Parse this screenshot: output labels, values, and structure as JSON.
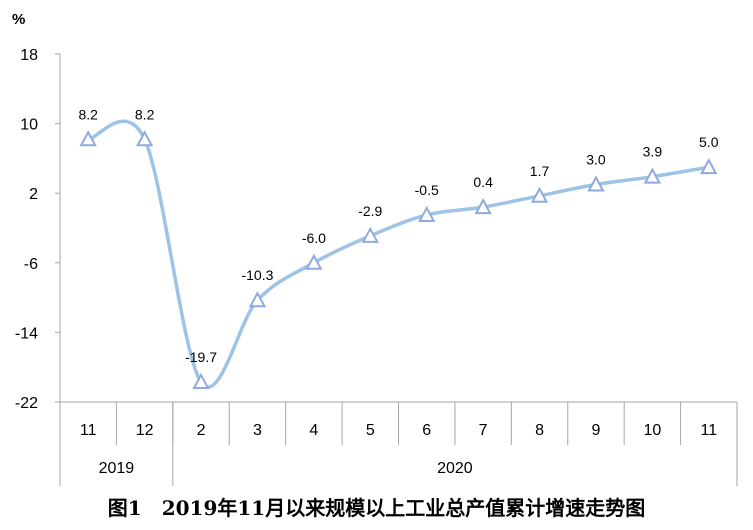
{
  "chart_data": {
    "type": "line",
    "unit_label": "%",
    "categories": [
      "11",
      "12",
      "2",
      "3",
      "4",
      "5",
      "6",
      "7",
      "8",
      "9",
      "10",
      "11"
    ],
    "year_groups": [
      {
        "label": "2019",
        "count": 2
      },
      {
        "label": "2020",
        "count": 10
      }
    ],
    "series": [
      {
        "values": [
          8.2,
          8.2,
          -19.7,
          -10.3,
          -6.0,
          -2.9,
          -0.5,
          0.4,
          1.7,
          3.0,
          3.9,
          5.0
        ],
        "labels": [
          "8.2",
          "8.2",
          "-19.7",
          "-10.3",
          "-6.0",
          "-2.9",
          "-0.5",
          "0.4",
          "1.7",
          "3.0",
          "3.9",
          "5.0"
        ]
      }
    ],
    "ylim": [
      -22,
      18
    ],
    "yticks": [
      18,
      10,
      2,
      -6,
      -14,
      -22
    ],
    "ytick_labels": [
      "18",
      "10",
      "2",
      "-6",
      "-14",
      "-22"
    ],
    "grid": false,
    "line_color": "#9dc3e6",
    "marker_color": "#8faadc",
    "marker": "triangle",
    "smooth": true
  },
  "caption": "图1　2019年11月以来规模以上工业总产值累计增速走势图"
}
